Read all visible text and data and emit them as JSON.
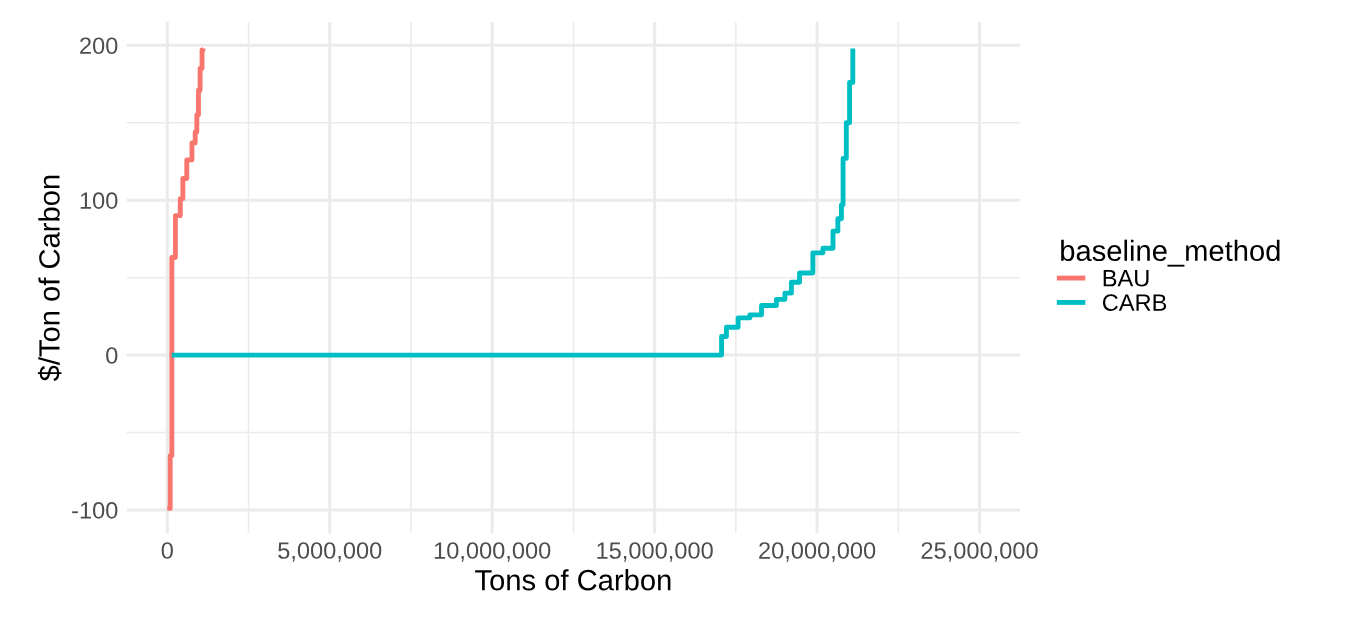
{
  "chart_data": {
    "type": "step",
    "xlabel": "Tons of Carbon",
    "ylabel": "$/Ton of Carbon",
    "legend_title": "baseline_method",
    "legend": "right",
    "grid": true,
    "xlim": [
      -1250000,
      26250000
    ],
    "ylim": [
      -115,
      215
    ],
    "xticks": [
      0,
      {
        "value": 2500000,
        "label": null
      },
      {
        "value": 5000000,
        "label": "5,000,000"
      },
      {
        "value": 7500000,
        "label": null
      },
      {
        "value": 10000000,
        "label": "10,000,000"
      },
      {
        "value": 12500000,
        "label": null
      },
      {
        "value": 15000000,
        "label": "15,000,000"
      },
      {
        "value": 17500000,
        "label": null
      },
      {
        "value": 20000000,
        "label": "20,000,000"
      },
      {
        "value": 22500000,
        "label": null
      },
      {
        "value": 25000000,
        "label": "25,000,000"
      }
    ],
    "yticks": [
      -100,
      {
        "value": -50,
        "label": null
      },
      0,
      {
        "value": 50,
        "label": null
      },
      100,
      {
        "value": 150,
        "label": null
      },
      200
    ],
    "series": [
      {
        "name": "BAU",
        "color": "#f8766d",
        "x": [
          0,
          90000,
          140000,
          140000,
          250000,
          400000,
          480000,
          600000,
          760000,
          860000,
          910000,
          960000,
          1010000,
          1070000,
          1100000
        ],
        "values": [
          -99,
          -65,
          -65,
          63,
          90,
          101,
          114,
          126,
          137,
          144,
          155,
          171,
          185,
          197,
          198
        ]
      },
      {
        "name": "CARB",
        "color": "#00bfc4",
        "x": [
          140000,
          17000000,
          17060000,
          17210000,
          17570000,
          17930000,
          18290000,
          18750000,
          19010000,
          19210000,
          19460000,
          19870000,
          20180000,
          20490000,
          20640000,
          20750000,
          20800000,
          20900000,
          21000000,
          21100000
        ],
        "values": [
          0,
          0,
          12,
          18,
          24,
          26,
          32,
          36,
          40,
          47,
          53,
          66,
          69,
          80,
          88,
          97,
          127,
          150,
          176,
          198
        ]
      }
    ]
  }
}
